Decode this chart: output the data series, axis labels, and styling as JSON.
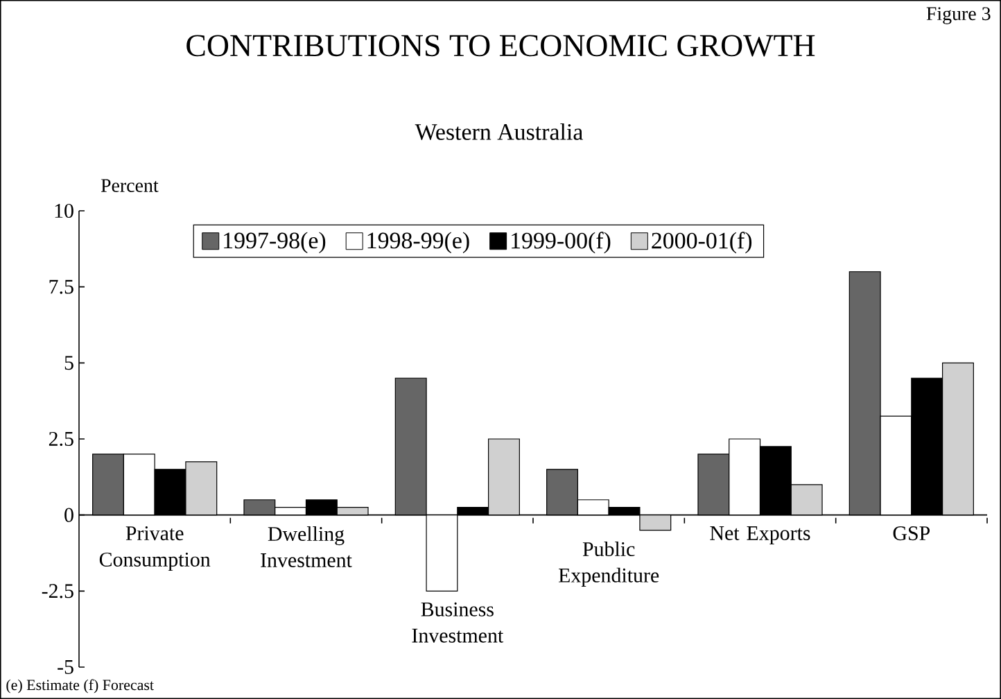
{
  "chart_data": {
    "type": "bar",
    "title": "CONTRIBUTIONS TO ECONOMIC GROWTH",
    "subtitle": "Western Australia",
    "ylabel": "Percent",
    "annotations": [
      "Figure 3",
      "(e) Estimate  (f) Forecast"
    ],
    "categories": [
      "Private Consumption",
      "Dwelling Investment",
      "Business Investment",
      "Public Expenditure",
      "Net Exports",
      "GSP"
    ],
    "series": [
      {
        "name": "1997-98(e)",
        "color": "#666666",
        "values": [
          2,
          0.5,
          4.5,
          1.5,
          2,
          8
        ]
      },
      {
        "name": "1998-99(e)",
        "color": "#ffffff",
        "values": [
          2,
          0.25,
          -2.5,
          0.5,
          2.5,
          3.25
        ]
      },
      {
        "name": "1999-00(f)",
        "color": "#000000",
        "values": [
          1.5,
          0.5,
          0.25,
          0.25,
          2.25,
          4.5
        ]
      },
      {
        "name": "2000-01(f)",
        "color": "#d0d0d0",
        "values": [
          1.75,
          0.25,
          2.5,
          -0.5,
          1,
          5
        ]
      }
    ],
    "ylim": [
      -5,
      10
    ],
    "yticks": [
      -5,
      -2.5,
      0,
      2.5,
      5,
      7.5,
      10
    ],
    "legend": "top",
    "grid": false
  }
}
